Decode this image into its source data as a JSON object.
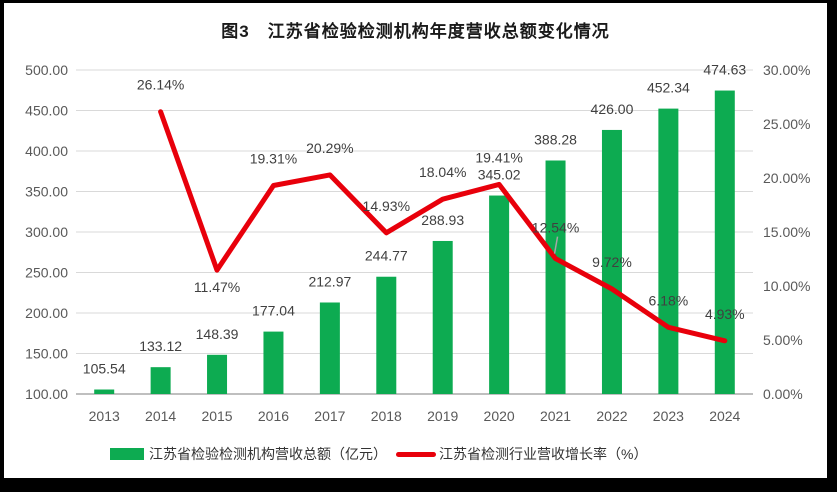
{
  "chart_data": {
    "type": "combo-bar-line",
    "title": "图3　江苏省检验检测机构年度营收总额变化情况",
    "categories": [
      "2013",
      "2014",
      "2015",
      "2016",
      "2017",
      "2018",
      "2019",
      "2020",
      "2021",
      "2022",
      "2023",
      "2024"
    ],
    "series": [
      {
        "name": "江苏省检验检测机构营收总额（亿元）",
        "type": "bar",
        "axis": "left",
        "color": "#0dab51",
        "values": [
          105.54,
          133.12,
          148.39,
          177.04,
          212.97,
          244.77,
          288.93,
          345.02,
          388.28,
          426.0,
          452.34,
          474.63
        ]
      },
      {
        "name": "江苏省检测行业营收增长率（%）",
        "type": "line",
        "axis": "right",
        "color": "#e8000b",
        "values": [
          null,
          26.14,
          11.47,
          19.31,
          20.29,
          14.93,
          18.04,
          19.41,
          12.54,
          9.72,
          6.18,
          4.93
        ]
      }
    ],
    "left_axis": {
      "min": 100,
      "max": 500,
      "step": 50,
      "tick_labels": [
        "100.00",
        "150.00",
        "200.00",
        "250.00",
        "300.00",
        "350.00",
        "400.00",
        "450.00",
        "500.00"
      ]
    },
    "right_axis": {
      "min": 0,
      "max": 30,
      "step": 5,
      "tick_labels": [
        "0.00%",
        "5.00%",
        "10.00%",
        "15.00%",
        "20.00%",
        "25.00%",
        "30.00%"
      ]
    },
    "grid": true,
    "legend_position": "bottom",
    "colors": {
      "bar": "#0dab51",
      "line": "#e8000b",
      "gridline": "#d9d9d9",
      "axis_line": "#bfbfbf",
      "data_label": "#404040",
      "tick_label": "#595959",
      "leader_line": "#a6a6a6",
      "frame": "#000000",
      "background": "#ffffff"
    }
  }
}
